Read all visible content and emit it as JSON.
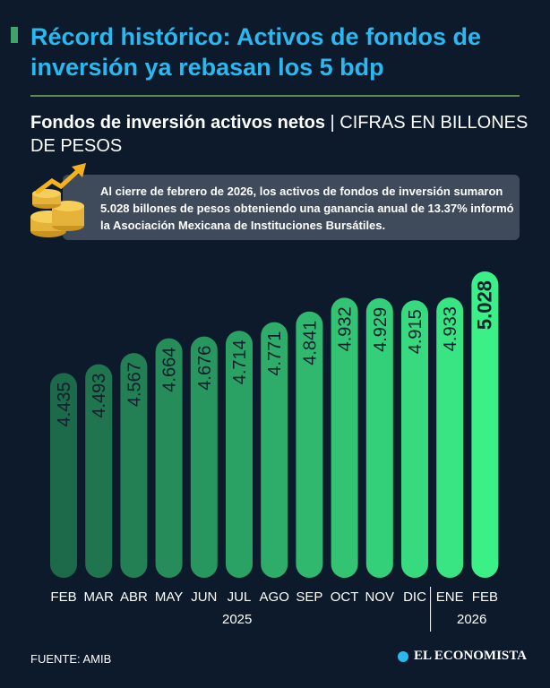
{
  "header": {
    "title": "Récord histórico: Activos de fondos de inversión ya rebasan los 5 bdp",
    "subtitle_strong": "Fondos de inversión activos netos",
    "subtitle_separator": "|",
    "subtitle_light": "CIFRAS EN BILLONES DE PESOS"
  },
  "callout": {
    "text": "Al cierre de febrero de 2026, los activos de fondos de inversión sumaron 5.028 billones de pesos obteniendo una ganancia anual de 13.37% informó la Asociación Mexicana de Instituciones Bursátiles.",
    "icon": "coins-growth-icon"
  },
  "chart_data": {
    "type": "bar",
    "categories": [
      "FEB",
      "MAR",
      "ABR",
      "MAY",
      "JUN",
      "JUL",
      "AGO",
      "SEP",
      "OCT",
      "NOV",
      "DIC",
      "ENE",
      "FEB"
    ],
    "values": [
      4.435,
      4.493,
      4.567,
      4.664,
      4.676,
      4.714,
      4.771,
      4.841,
      4.932,
      4.929,
      4.915,
      4.933,
      5.028
    ],
    "value_labels": [
      "4.435",
      "4.493",
      "4.567",
      "4.664",
      "4.676",
      "4.714",
      "4.771",
      "4.841",
      "4.932",
      "4.929",
      "4.915",
      "4.933",
      "5.028"
    ],
    "years": [
      {
        "label": "2025",
        "span": [
          "FEB",
          "DIC"
        ]
      },
      {
        "label": "2026",
        "span": [
          "ENE",
          "FEB"
        ]
      }
    ],
    "colors": {
      "start": "#1d6a4a",
      "end": "#3cf088"
    }
  },
  "footer": {
    "source": "FUENTE: AMIB",
    "logo": "EL ECONOMISTA"
  }
}
